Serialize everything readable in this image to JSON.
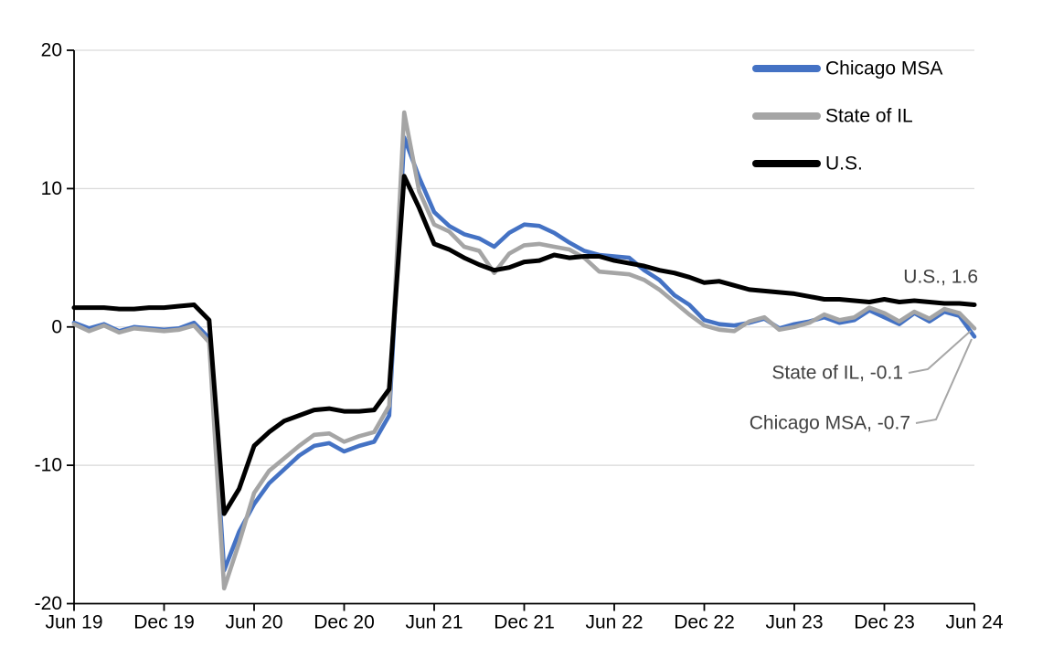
{
  "chart_data": {
    "type": "line",
    "title": "",
    "frequency": "monthly",
    "grid": "horizontal",
    "legend_position": "inside-top-right",
    "x_axis": {
      "tick_labels": [
        "Jun 19",
        "Dec 19",
        "Jun 20",
        "Dec 20",
        "Jun 21",
        "Dec 21",
        "Jun 22",
        "Dec 22",
        "Jun 23",
        "Dec 23",
        "Jun 24"
      ]
    },
    "y_axis": {
      "ticks": [
        20,
        10,
        0,
        -10,
        -20
      ],
      "min": -20,
      "max": 20
    },
    "x": [
      "2019-06",
      "2019-07",
      "2019-08",
      "2019-09",
      "2019-10",
      "2019-11",
      "2019-12",
      "2020-01",
      "2020-02",
      "2020-03",
      "2020-04",
      "2020-05",
      "2020-06",
      "2020-07",
      "2020-08",
      "2020-09",
      "2020-10",
      "2020-11",
      "2020-12",
      "2021-01",
      "2021-02",
      "2021-03",
      "2021-04",
      "2021-05",
      "2021-06",
      "2021-07",
      "2021-08",
      "2021-09",
      "2021-10",
      "2021-11",
      "2021-12",
      "2022-01",
      "2022-02",
      "2022-03",
      "2022-04",
      "2022-05",
      "2022-06",
      "2022-07",
      "2022-08",
      "2022-09",
      "2022-10",
      "2022-11",
      "2022-12",
      "2023-01",
      "2023-02",
      "2023-03",
      "2023-04",
      "2023-05",
      "2023-06",
      "2023-07",
      "2023-08",
      "2023-09",
      "2023-10",
      "2023-11",
      "2023-12",
      "2024-01",
      "2024-02",
      "2024-03",
      "2024-04",
      "2024-05",
      "2024-06"
    ],
    "series": [
      {
        "name": "Chicago MSA",
        "color": "#4472C4",
        "end_value": -0.7,
        "values": [
          0.3,
          -0.1,
          0.2,
          -0.3,
          0.0,
          -0.1,
          -0.2,
          -0.1,
          0.3,
          -0.8,
          -17.6,
          -14.8,
          -12.8,
          -11.3,
          -10.3,
          -9.3,
          -8.6,
          -8.4,
          -9.0,
          -8.6,
          -8.3,
          -6.4,
          13.7,
          10.8,
          8.3,
          7.3,
          6.7,
          6.4,
          5.8,
          6.8,
          7.4,
          7.3,
          6.8,
          6.1,
          5.5,
          5.2,
          5.1,
          5.0,
          4.1,
          3.4,
          2.3,
          1.6,
          0.5,
          0.2,
          0.1,
          0.3,
          0.6,
          -0.1,
          0.2,
          0.4,
          0.7,
          0.3,
          0.5,
          1.2,
          0.7,
          0.2,
          1.0,
          0.4,
          1.1,
          0.8,
          -0.7
        ]
      },
      {
        "name": "State of IL",
        "color": "#A5A5A5",
        "end_value": -0.1,
        "values": [
          0.2,
          -0.3,
          0.1,
          -0.4,
          -0.1,
          -0.2,
          -0.3,
          -0.2,
          0.1,
          -1.1,
          -18.9,
          -15.6,
          -12.0,
          -10.4,
          -9.5,
          -8.6,
          -7.8,
          -7.7,
          -8.3,
          -7.9,
          -7.6,
          -5.7,
          15.5,
          9.8,
          7.4,
          6.9,
          5.8,
          5.5,
          3.9,
          5.3,
          5.9,
          6.0,
          5.8,
          5.6,
          5.0,
          4.0,
          3.9,
          3.8,
          3.4,
          2.7,
          1.8,
          0.9,
          0.1,
          -0.2,
          -0.3,
          0.4,
          0.7,
          -0.2,
          0.0,
          0.3,
          0.9,
          0.5,
          0.7,
          1.4,
          1.0,
          0.4,
          1.1,
          0.6,
          1.3,
          1.0,
          -0.1
        ]
      },
      {
        "name": "U.S.",
        "color": "#000000",
        "end_value": 1.6,
        "values": [
          1.4,
          1.4,
          1.4,
          1.3,
          1.3,
          1.4,
          1.4,
          1.5,
          1.6,
          0.5,
          -13.5,
          -11.7,
          -8.6,
          -7.6,
          -6.8,
          -6.4,
          -6.0,
          -5.9,
          -6.1,
          -6.1,
          -6.0,
          -4.5,
          10.9,
          8.6,
          6.0,
          5.6,
          5.0,
          4.5,
          4.1,
          4.3,
          4.7,
          4.8,
          5.2,
          5.0,
          5.1,
          5.1,
          4.8,
          4.6,
          4.4,
          4.1,
          3.9,
          3.6,
          3.2,
          3.3,
          3.0,
          2.7,
          2.6,
          2.5,
          2.4,
          2.2,
          2.0,
          2.0,
          1.9,
          1.8,
          2.0,
          1.8,
          1.9,
          1.8,
          1.7,
          1.7,
          1.6
        ]
      }
    ],
    "legend": [
      "Chicago MSA",
      "State of IL",
      "U.S."
    ],
    "annotations": [
      {
        "text": "U.S., 1.6",
        "series": "U.S."
      },
      {
        "text": "State of IL, -0.1",
        "series": "State of IL"
      },
      {
        "text": "Chicago MSA, -0.7",
        "series": "Chicago MSA"
      }
    ],
    "colors": {
      "chicago_msa": "#4472C4",
      "state_of_il": "#A5A5A5",
      "us": "#000000",
      "gridline": "#D9D9D9",
      "axis": "#000000",
      "tick_label": "#000000",
      "annotation_text": "#404040",
      "leader_line": "#A6A6A6",
      "background": "#FFFFFF"
    }
  }
}
